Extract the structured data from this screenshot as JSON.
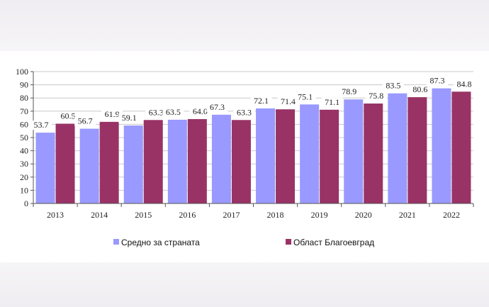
{
  "chart_data": {
    "type": "bar",
    "categories": [
      "2013",
      "2014",
      "2015",
      "2016",
      "2017",
      "2018",
      "2019",
      "2020",
      "2021",
      "2022"
    ],
    "series": [
      {
        "name": "Средно за страната",
        "color": "#9999ff",
        "values": [
          53.7,
          56.7,
          59.1,
          63.5,
          67.3,
          72.1,
          75.1,
          78.9,
          83.5,
          87.3
        ],
        "labels": [
          "53.7",
          "56.7",
          "59.1",
          "63.5",
          "67.3",
          "72.1",
          "75.1",
          "78.9",
          "83.5",
          "87.3"
        ]
      },
      {
        "name": "Област Благоевград",
        "color": "#993366",
        "values": [
          60.5,
          61.9,
          63.3,
          64.0,
          63.3,
          71.4,
          71.1,
          75.8,
          80.6,
          84.8
        ],
        "labels": [
          "60.5",
          "61.9",
          "63.3",
          "64.0",
          "63.3",
          "71.4",
          "71.1",
          "75.8",
          "80.6",
          "84.8"
        ]
      }
    ],
    "ylim": [
      0,
      100
    ],
    "yticks": [
      "0",
      "10",
      "20",
      "30",
      "40",
      "50",
      "60",
      "70",
      "80",
      "90",
      "100"
    ],
    "grid": true,
    "legend": "bottom",
    "title": "",
    "xlabel": "",
    "ylabel": ""
  }
}
